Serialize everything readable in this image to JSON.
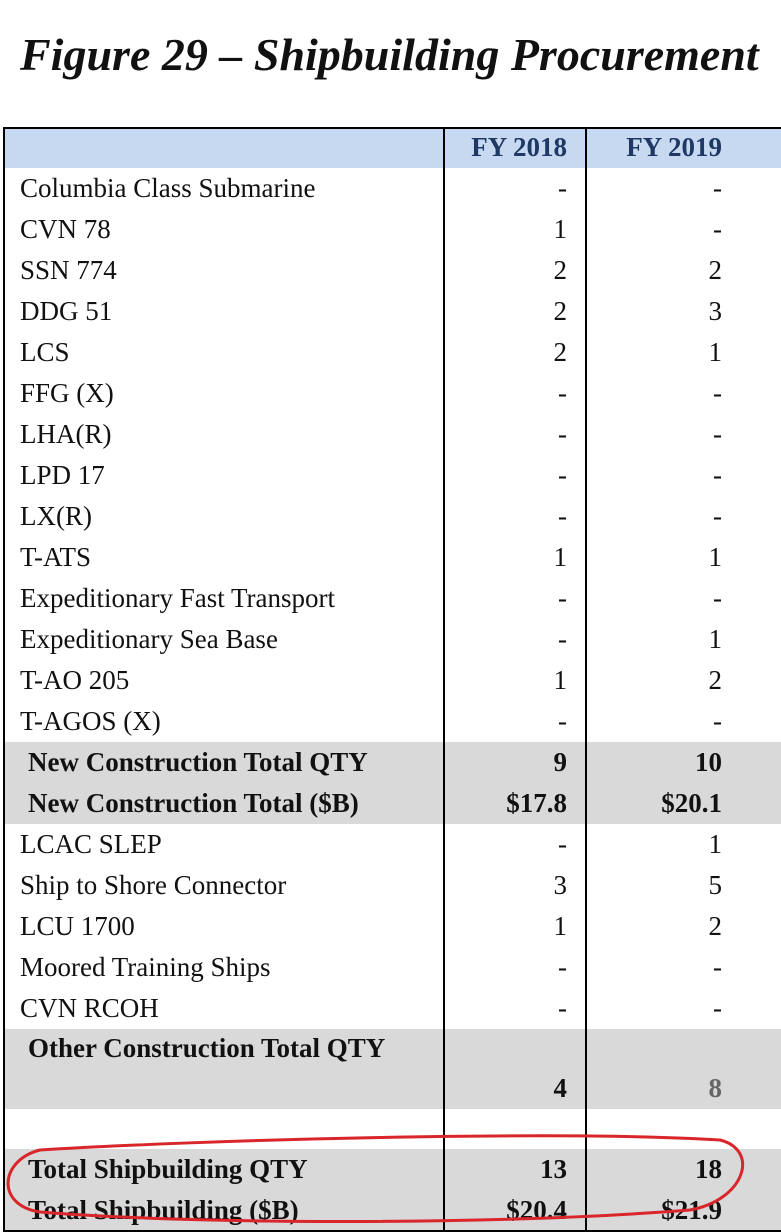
{
  "title": "Figure 29 – Shipbuilding Procurement",
  "table": {
    "header": [
      "FY 2018",
      "FY 2019"
    ],
    "rows": [
      [
        "Columbia Class Submarine",
        "-",
        "-"
      ],
      [
        "CVN 78",
        "1",
        "-"
      ],
      [
        "SSN 774",
        "2",
        "2"
      ],
      [
        "DDG 51",
        "2",
        "3"
      ],
      [
        "LCS",
        "2",
        "1"
      ],
      [
        "FFG (X)",
        "-",
        "-"
      ],
      [
        "LHA(R)",
        "-",
        "-"
      ],
      [
        "LPD 17",
        "-",
        "-"
      ],
      [
        "LX(R)",
        "-",
        "-"
      ],
      [
        "T-ATS",
        "1",
        "1"
      ],
      [
        "Expeditionary Fast Transport",
        "-",
        "-"
      ],
      [
        "Expeditionary Sea Base",
        "-",
        "1"
      ],
      [
        "T-AO 205",
        "1",
        "2"
      ],
      [
        "T-AGOS (X)",
        "-",
        "-"
      ],
      [
        "New Construction Total QTY",
        "9",
        "10"
      ],
      [
        "New Construction Total ($B)",
        "$17.8",
        "$20.1"
      ],
      [
        "LCAC SLEP",
        "-",
        "1"
      ],
      [
        "Ship to Shore Connector",
        "3",
        "5"
      ],
      [
        "LCU 1700",
        "1",
        "2"
      ],
      [
        "Moored Training Ships",
        "-",
        "-"
      ],
      [
        "CVN RCOH",
        "-",
        "-"
      ],
      [
        "Other Construction Total QTY",
        "4",
        "8"
      ],
      [
        "Total Shipbuilding QTY",
        "13",
        "18"
      ],
      [
        "Total Shipbuilding ($B)",
        "$20.4",
        "$21.9"
      ]
    ]
  }
}
